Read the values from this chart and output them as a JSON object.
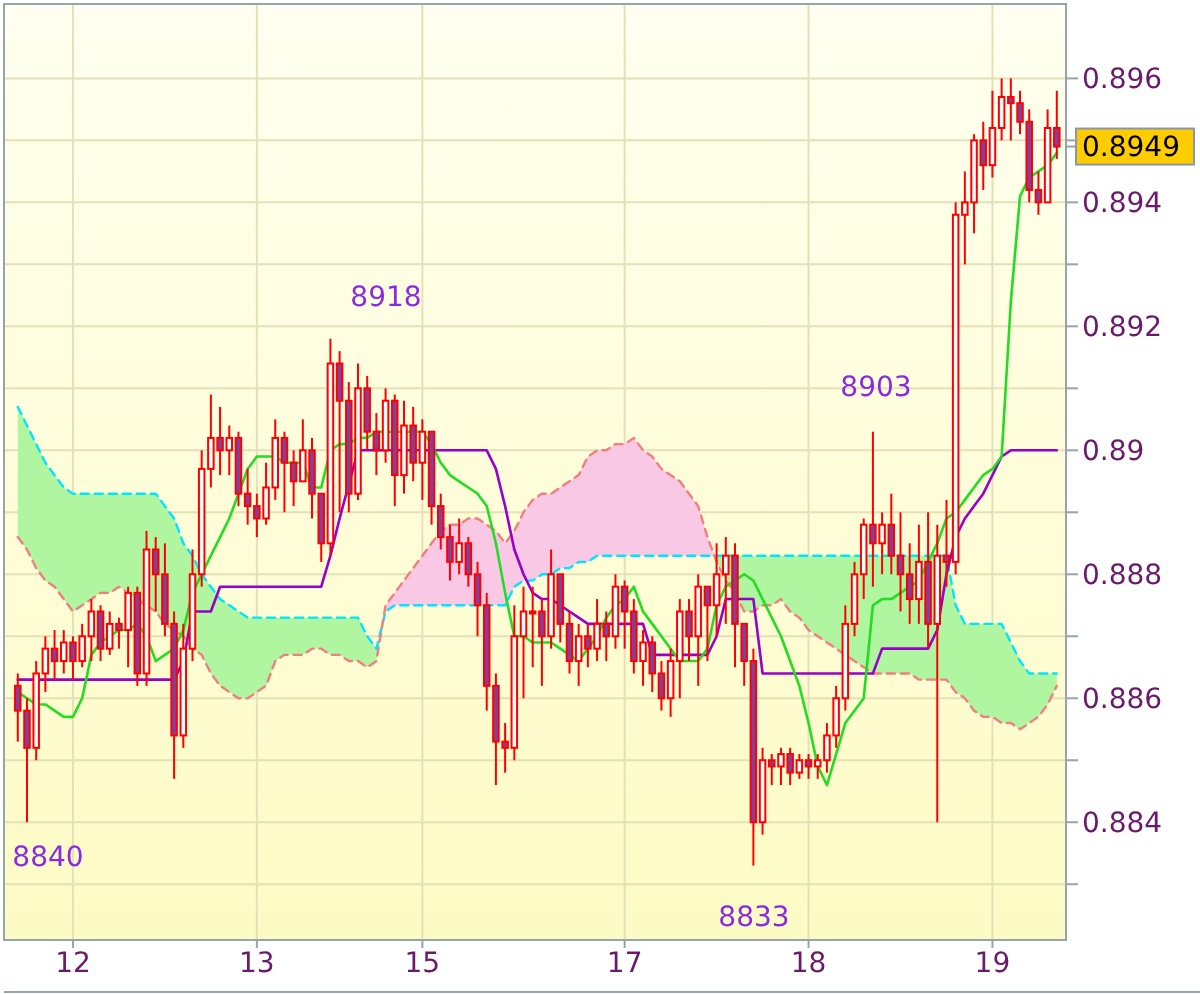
{
  "chart_data": {
    "type": "candlestick",
    "color": "#ff0000",
    "categories": [
      null,
      null,
      null,
      null,
      null,
      null,
      "12",
      null,
      null,
      null,
      null,
      null,
      null,
      null,
      null,
      null,
      null,
      null,
      null,
      null,
      null,
      null,
      null,
      null,
      null,
      null,
      "13",
      null,
      null,
      null,
      null,
      null,
      null,
      null,
      null,
      null,
      null,
      null,
      null,
      null,
      null,
      null,
      null,
      null,
      "15",
      null,
      null,
      null,
      null,
      null,
      null,
      null,
      null,
      null,
      null,
      null,
      null,
      null,
      null,
      null,
      null,
      null,
      null,
      null,
      null,
      null,
      "17",
      null,
      null,
      null,
      null,
      null,
      null,
      null,
      null,
      null,
      null,
      null,
      null,
      null,
      null,
      null,
      null,
      null,
      null,
      null,
      "18",
      null,
      null,
      null,
      null,
      null,
      null,
      null,
      null,
      null,
      null,
      null,
      null,
      null,
      null,
      null,
      null,
      null,
      null,
      null,
      "19",
      null,
      null,
      null,
      null,
      null,
      null,
      null
    ],
    "ohlc": [
      [
        0.8862,
        0.8864,
        0.8853,
        0.8858
      ],
      [
        0.8858,
        0.886,
        0.884,
        0.8852
      ],
      [
        0.8852,
        0.8866,
        0.885,
        0.8864
      ],
      [
        0.8864,
        0.887,
        0.8861,
        0.8868
      ],
      [
        0.8868,
        0.8871,
        0.8863,
        0.8866
      ],
      [
        0.8866,
        0.8871,
        0.8864,
        0.8869
      ],
      [
        0.8869,
        0.887,
        0.8863,
        0.8866
      ],
      [
        0.8866,
        0.8872,
        0.8865,
        0.887
      ],
      [
        0.887,
        0.8876,
        0.8866,
        0.8874
      ],
      [
        0.8874,
        0.8875,
        0.8866,
        0.8868
      ],
      [
        0.8868,
        0.8874,
        0.8867,
        0.8872
      ],
      [
        0.8872,
        0.8873,
        0.8868,
        0.8871
      ],
      [
        0.8871,
        0.8878,
        0.8865,
        0.8877
      ],
      [
        0.8877,
        0.8878,
        0.8862,
        0.8864
      ],
      [
        0.8864,
        0.8887,
        0.8862,
        0.8884
      ],
      [
        0.8884,
        0.8886,
        0.8874,
        0.888
      ],
      [
        0.888,
        0.8885,
        0.887,
        0.8872
      ],
      [
        0.8872,
        0.8874,
        0.8847,
        0.8854
      ],
      [
        0.8854,
        0.8872,
        0.8852,
        0.8868
      ],
      [
        0.8868,
        0.8884,
        0.8866,
        0.888
      ],
      [
        0.888,
        0.89,
        0.8878,
        0.8897
      ],
      [
        0.8897,
        0.8909,
        0.8894,
        0.8902
      ],
      [
        0.8902,
        0.8907,
        0.8896,
        0.89
      ],
      [
        0.89,
        0.8904,
        0.8896,
        0.8902
      ],
      [
        0.8902,
        0.8903,
        0.8891,
        0.8893
      ],
      [
        0.8893,
        0.8897,
        0.8888,
        0.8891
      ],
      [
        0.8891,
        0.8893,
        0.8886,
        0.8889
      ],
      [
        0.8889,
        0.8898,
        0.8888,
        0.8894
      ],
      [
        0.8894,
        0.8905,
        0.8892,
        0.8902
      ],
      [
        0.8902,
        0.8903,
        0.889,
        0.8898
      ],
      [
        0.8898,
        0.89,
        0.8891,
        0.8895
      ],
      [
        0.8895,
        0.8905,
        0.8895,
        0.89
      ],
      [
        0.89,
        0.8902,
        0.8889,
        0.8893
      ],
      [
        0.8893,
        0.8893,
        0.8882,
        0.8885
      ],
      [
        0.8885,
        0.8918,
        0.8883,
        0.8914
      ],
      [
        0.8914,
        0.8916,
        0.889,
        0.8908
      ],
      [
        0.8908,
        0.8911,
        0.889,
        0.8893
      ],
      [
        0.8893,
        0.8914,
        0.8892,
        0.891
      ],
      [
        0.891,
        0.8912,
        0.89,
        0.8903
      ],
      [
        0.8903,
        0.8906,
        0.8896,
        0.89
      ],
      [
        0.89,
        0.891,
        0.8898,
        0.8908
      ],
      [
        0.8908,
        0.8909,
        0.8891,
        0.8896
      ],
      [
        0.8896,
        0.8908,
        0.8893,
        0.8904
      ],
      [
        0.8904,
        0.8907,
        0.8895,
        0.8898
      ],
      [
        0.8898,
        0.8905,
        0.8892,
        0.8903
      ],
      [
        0.8903,
        0.8903,
        0.8888,
        0.8891
      ],
      [
        0.8891,
        0.8893,
        0.8884,
        0.8886
      ],
      [
        0.8886,
        0.8888,
        0.8879,
        0.8882
      ],
      [
        0.8882,
        0.8889,
        0.888,
        0.8885
      ],
      [
        0.8885,
        0.8886,
        0.8878,
        0.888
      ],
      [
        0.888,
        0.8882,
        0.887,
        0.8875
      ],
      [
        0.8875,
        0.8877,
        0.8858,
        0.8862
      ],
      [
        0.8862,
        0.8864,
        0.8846,
        0.8853
      ],
      [
        0.8853,
        0.8856,
        0.8848,
        0.8852
      ],
      [
        0.8852,
        0.8875,
        0.885,
        0.887
      ],
      [
        0.887,
        0.8878,
        0.886,
        0.8874
      ],
      [
        0.8874,
        0.8878,
        0.8865,
        0.8874
      ],
      [
        0.8874,
        0.8876,
        0.8862,
        0.887
      ],
      [
        0.887,
        0.8884,
        0.8868,
        0.888
      ],
      [
        0.888,
        0.888,
        0.8869,
        0.8872
      ],
      [
        0.8872,
        0.8874,
        0.8864,
        0.8866
      ],
      [
        0.8866,
        0.8872,
        0.8862,
        0.887
      ],
      [
        0.887,
        0.8872,
        0.8865,
        0.8868
      ],
      [
        0.8868,
        0.8876,
        0.8866,
        0.8872
      ],
      [
        0.8872,
        0.8874,
        0.8866,
        0.887
      ],
      [
        0.887,
        0.888,
        0.8868,
        0.8878
      ],
      [
        0.8878,
        0.8879,
        0.8868,
        0.8874
      ],
      [
        0.8874,
        0.8876,
        0.8864,
        0.8866
      ],
      [
        0.8866,
        0.8871,
        0.8862,
        0.8869
      ],
      [
        0.8869,
        0.887,
        0.8861,
        0.8864
      ],
      [
        0.8864,
        0.8866,
        0.8858,
        0.886
      ],
      [
        0.886,
        0.8868,
        0.8857,
        0.8866
      ],
      [
        0.8866,
        0.8876,
        0.886,
        0.8874
      ],
      [
        0.8874,
        0.8876,
        0.8866,
        0.887
      ],
      [
        0.887,
        0.888,
        0.8862,
        0.8878
      ],
      [
        0.8878,
        0.8878,
        0.8866,
        0.8875
      ],
      [
        0.8875,
        0.8885,
        0.887,
        0.888
      ],
      [
        0.888,
        0.8886,
        0.8872,
        0.8883
      ],
      [
        0.8883,
        0.8885,
        0.8865,
        0.8872
      ],
      [
        0.8872,
        0.8872,
        0.8862,
        0.8866
      ],
      [
        0.8866,
        0.8868,
        0.8833,
        0.884
      ],
      [
        0.884,
        0.8852,
        0.8838,
        0.885
      ],
      [
        0.885,
        0.8851,
        0.8846,
        0.8849
      ],
      [
        0.8849,
        0.8852,
        0.8846,
        0.8851
      ],
      [
        0.8851,
        0.8852,
        0.8846,
        0.8848
      ],
      [
        0.8848,
        0.8851,
        0.8847,
        0.885
      ],
      [
        0.885,
        0.8851,
        0.8847,
        0.8849
      ],
      [
        0.8849,
        0.8851,
        0.8847,
        0.885
      ],
      [
        0.885,
        0.8856,
        0.8848,
        0.8854
      ],
      [
        0.8854,
        0.8862,
        0.8852,
        0.886
      ],
      [
        0.886,
        0.8875,
        0.8858,
        0.8872
      ],
      [
        0.8872,
        0.8882,
        0.887,
        0.888
      ],
      [
        0.888,
        0.8889,
        0.8876,
        0.8888
      ],
      [
        0.8888,
        0.8903,
        0.8878,
        0.8885
      ],
      [
        0.8885,
        0.889,
        0.888,
        0.8888
      ],
      [
        0.8888,
        0.8893,
        0.888,
        0.8883
      ],
      [
        0.8883,
        0.889,
        0.8874,
        0.888
      ],
      [
        0.888,
        0.8885,
        0.8872,
        0.8876
      ],
      [
        0.8876,
        0.8888,
        0.8872,
        0.8882
      ],
      [
        0.8882,
        0.889,
        0.8868,
        0.8872
      ],
      [
        0.8872,
        0.8888,
        0.884,
        0.8883
      ],
      [
        0.8883,
        0.8892,
        0.8878,
        0.8882
      ],
      [
        0.8882,
        0.894,
        0.888,
        0.8938
      ],
      [
        0.8938,
        0.8945,
        0.893,
        0.894
      ],
      [
        0.894,
        0.8951,
        0.8935,
        0.895
      ],
      [
        0.895,
        0.8953,
        0.8942,
        0.8946
      ],
      [
        0.8946,
        0.8958,
        0.8944,
        0.8952
      ],
      [
        0.8952,
        0.896,
        0.895,
        0.8957
      ],
      [
        0.8957,
        0.896,
        0.895,
        0.8956
      ],
      [
        0.8956,
        0.8958,
        0.8951,
        0.8953
      ],
      [
        0.8953,
        0.8955,
        0.894,
        0.8942
      ],
      [
        0.8942,
        0.8945,
        0.8938,
        0.894
      ],
      [
        0.894,
        0.8955,
        0.894,
        0.8952
      ],
      [
        0.8952,
        0.8958,
        0.8947,
        0.8949
      ]
    ],
    "series": [
      {
        "type": "line",
        "color": "#00e5ff",
        "line_style": "dashed",
        "values": [
          0.8907,
          0.8904,
          0.8901,
          0.8898,
          0.8896,
          0.8894,
          0.8893,
          0.8893,
          0.8893,
          0.8893,
          0.8893,
          0.8893,
          0.8893,
          0.8893,
          0.8893,
          0.8893,
          0.8891,
          0.8889,
          0.8885,
          0.8883,
          0.888,
          0.8878,
          0.8876,
          0.8875,
          0.8874,
          0.8873,
          0.8873,
          0.8873,
          0.8873,
          0.8873,
          0.8873,
          0.8873,
          0.8873,
          0.8873,
          0.8873,
          0.8873,
          0.8873,
          0.8873,
          0.887,
          0.8868,
          0.8874,
          0.8875,
          0.8875,
          0.8875,
          0.8875,
          0.8875,
          0.8875,
          0.8875,
          0.8875,
          0.8875,
          0.8875,
          0.8875,
          0.8875,
          0.8875,
          0.8878,
          0.8879,
          0.8879,
          0.888,
          0.888,
          0.8881,
          0.8881,
          0.8882,
          0.8882,
          0.8883,
          0.8883,
          0.8883,
          0.8883,
          0.8883,
          0.8883,
          0.8883,
          0.8883,
          0.8883,
          0.8883,
          0.8883,
          0.8883,
          0.8883,
          0.8883,
          0.8883,
          0.8883,
          0.8883,
          0.8883,
          0.8883,
          0.8883,
          0.8883,
          0.8883,
          0.8883,
          0.8883,
          0.8883,
          0.8883,
          0.8883,
          0.8883,
          0.8883,
          0.8883,
          0.8883,
          0.8883,
          0.8883,
          0.8883,
          0.8883,
          0.8883,
          0.8883,
          0.8883,
          0.8883,
          0.8875,
          0.8872,
          0.8872,
          0.8872,
          0.8872,
          0.8872,
          0.8869,
          0.8866,
          0.8864,
          0.8864,
          0.8864,
          0.8864
        ]
      },
      {
        "type": "line",
        "color": "#f08080",
        "line_style": "dashed",
        "values": [
          0.8886,
          0.8884,
          0.8881,
          0.8879,
          0.8878,
          0.8876,
          0.8874,
          0.8875,
          0.8876,
          0.8877,
          0.8877,
          0.8878,
          0.8877,
          0.8876,
          0.8875,
          0.8874,
          0.8872,
          0.8871,
          0.887,
          0.8868,
          0.8867,
          0.8864,
          0.8862,
          0.8861,
          0.886,
          0.886,
          0.8861,
          0.8862,
          0.8866,
          0.8867,
          0.8867,
          0.8867,
          0.8868,
          0.8868,
          0.8867,
          0.8867,
          0.8866,
          0.8866,
          0.8865,
          0.8866,
          0.8875,
          0.8877,
          0.8879,
          0.8881,
          0.8883,
          0.8885,
          0.8887,
          0.8888,
          0.8888,
          0.8889,
          0.8889,
          0.8888,
          0.8887,
          0.8885,
          0.8887,
          0.889,
          0.8892,
          0.8893,
          0.8893,
          0.8894,
          0.8895,
          0.8896,
          0.8899,
          0.89,
          0.89,
          0.8901,
          0.8901,
          0.8902,
          0.89,
          0.8899,
          0.8897,
          0.8896,
          0.8895,
          0.8893,
          0.8891,
          0.8886,
          0.8882,
          0.8879,
          0.8877,
          0.8874,
          0.8874,
          0.8875,
          0.8875,
          0.8876,
          0.8874,
          0.8873,
          0.8871,
          0.887,
          0.8869,
          0.8868,
          0.8867,
          0.8866,
          0.8865,
          0.8864,
          0.8864,
          0.8864,
          0.8864,
          0.8864,
          0.8863,
          0.8863,
          0.8863,
          0.8863,
          0.8861,
          0.886,
          0.8858,
          0.8857,
          0.8857,
          0.8856,
          0.8856,
          0.8855,
          0.8856,
          0.8857,
          0.8859,
          0.8862
        ]
      },
      {
        "type": "line",
        "color": "#9900cc",
        "line_style": "solid",
        "values": [
          0.8863,
          0.8863,
          0.8863,
          0.8863,
          0.8863,
          0.8863,
          0.8863,
          0.8863,
          0.8863,
          0.8863,
          0.8863,
          0.8863,
          0.8863,
          0.8863,
          0.8863,
          0.8863,
          0.8863,
          0.8863,
          0.8866,
          0.8874,
          0.8874,
          0.8874,
          0.8878,
          0.8878,
          0.8878,
          0.8878,
          0.8878,
          0.8878,
          0.8878,
          0.8878,
          0.8878,
          0.8878,
          0.8878,
          0.8878,
          0.8883,
          0.8889,
          null,
          0.89,
          0.89,
          0.89,
          0.89,
          0.89,
          0.89,
          0.89,
          0.89,
          0.89,
          0.89,
          0.89,
          0.89,
          0.89,
          0.89,
          0.89,
          0.8897,
          0.8891,
          0.8884,
          0.888,
          0.8877,
          0.8876,
          0.8876,
          0.8875,
          0.8874,
          0.8873,
          0.8872,
          0.8872,
          0.8872,
          0.8872,
          0.8872,
          0.8872,
          0.8872,
          0.8867,
          0.8867,
          0.8867,
          0.8867,
          0.8867,
          0.8867,
          0.8867,
          0.887,
          0.8876,
          0.8876,
          0.8876,
          0.8876,
          0.8864,
          0.8864,
          0.8864,
          0.8864,
          0.8864,
          0.8864,
          0.8864,
          0.8864,
          0.8864,
          0.8864,
          0.8864,
          0.8864,
          0.8864,
          0.8868,
          0.8868,
          0.8868,
          0.8868,
          0.8868,
          0.8868,
          0.8871,
          0.888,
          0.8886,
          0.8889,
          0.8891,
          0.8893,
          0.8896,
          0.8899,
          0.89,
          0.89,
          0.89,
          0.89,
          0.89,
          0.89
        ]
      },
      {
        "type": "line",
        "color": "#22dd22",
        "line_style": "solid",
        "values": [
          0.8861,
          0.886,
          0.8859,
          0.8859,
          0.8858,
          0.8857,
          0.8857,
          0.886,
          0.8867,
          0.8869,
          0.887,
          0.8871,
          0.8871,
          0.8872,
          0.887,
          0.8866,
          0.8867,
          0.8868,
          0.8871,
          0.8877,
          0.888,
          0.8883,
          0.8886,
          0.8889,
          0.8893,
          0.8897,
          0.8899,
          0.8899,
          0.8899,
          0.8898,
          0.8898,
          0.8898,
          0.8894,
          0.8894,
          0.89,
          0.8901,
          0.8901,
          0.8902,
          0.8902,
          0.8903,
          0.8903,
          0.8903,
          0.8903,
          0.8903,
          0.8903,
          0.8901,
          0.8898,
          0.8896,
          0.8895,
          0.8894,
          0.8893,
          0.8891,
          0.8885,
          0.8877,
          0.887,
          0.887,
          0.8869,
          0.8869,
          0.8869,
          0.8868,
          0.8867,
          0.8866,
          0.8868,
          0.887,
          0.8873,
          0.8875,
          0.8876,
          0.8878,
          0.8874,
          0.8872,
          0.887,
          0.8868,
          0.8866,
          0.8866,
          0.8866,
          0.8868,
          0.8875,
          0.8878,
          0.8879,
          0.888,
          0.8879,
          0.8876,
          0.8873,
          0.887,
          0.8866,
          0.8862,
          0.8856,
          0.8849,
          0.8846,
          0.8851,
          0.8856,
          0.8858,
          0.886,
          0.8875,
          0.8876,
          0.8876,
          0.8877,
          0.8878,
          0.8879,
          0.8882,
          0.8885,
          0.8889,
          0.889,
          0.8892,
          0.8894,
          0.8896,
          0.8897,
          0.8899,
          0.8924,
          0.8941,
          0.8944,
          0.8945,
          0.8946,
          0.8948
        ]
      }
    ],
    "ylim": [
      0.8821,
      0.8972
    ],
    "yticks": [
      {
        "value": 0.883,
        "label": null
      },
      0.884,
      {
        "value": 0.885,
        "label": null
      },
      0.886,
      {
        "value": 0.887,
        "label": null
      },
      0.888,
      {
        "value": 0.889,
        "label": null
      },
      0.89,
      {
        "value": 0.891,
        "label": null
      },
      0.892,
      {
        "value": 0.893,
        "label": null
      },
      0.894,
      {
        "value": 0.895,
        "label": null
      },
      0.896
    ],
    "grid": true,
    "annotations": [
      "8918",
      "8903",
      "8840",
      "8833",
      "0.8949"
    ]
  }
}
